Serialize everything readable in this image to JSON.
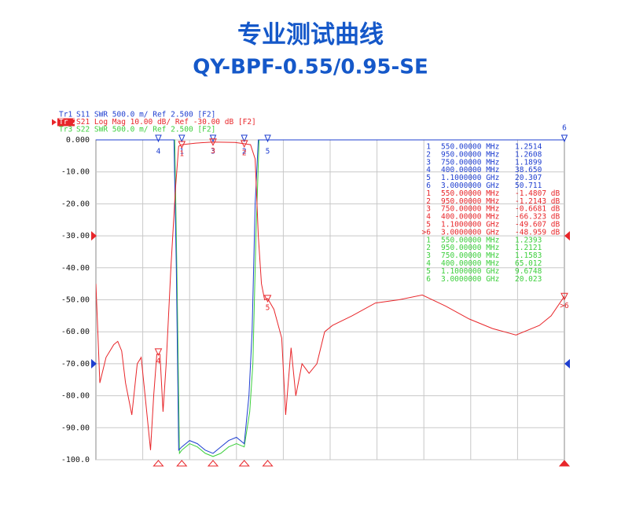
{
  "chart_data": {
    "type": "line",
    "title": "专业测试曲线",
    "subtitle": "QY-BPF-0.55/0.95-SE",
    "xlim": [
      0,
      3000
    ],
    "ylim": [
      -100,
      0
    ],
    "yticks": [
      {
        "value": 0,
        "label": "0.000"
      },
      {
        "value": -10,
        "label": "-10.00"
      },
      {
        "value": -20,
        "label": "-20.00"
      },
      {
        "value": -30,
        "label": "-30.00"
      },
      {
        "value": -40,
        "label": "-40.00"
      },
      {
        "value": -50,
        "label": "-50.00"
      },
      {
        "value": -60,
        "label": "-60.00"
      },
      {
        "value": -70,
        "label": "-70.00"
      },
      {
        "value": -80,
        "label": "-80.00"
      },
      {
        "value": -90,
        "label": "-90.00"
      },
      {
        "value": -100,
        "label": "-100.0"
      }
    ],
    "grid": true,
    "ref_markers": [
      {
        "value": -30,
        "color": "#e8262a"
      },
      {
        "value": -70,
        "color": "#1f3fd0"
      }
    ],
    "series": [
      {
        "name": "Tr1",
        "description": "S11  SWR 500.0 m/ Ref 2.500  [F2]",
        "color": "#1f3fd0",
        "marker_style": "top",
        "x": [
          0,
          500,
          515,
          530,
          550,
          600,
          650,
          700,
          750,
          800,
          850,
          900,
          950,
          980,
          1000,
          1020,
          1040,
          1060,
          3000
        ],
        "values": [
          0,
          0,
          -40,
          -97,
          -96,
          -94,
          -95,
          -97,
          -98,
          -96,
          -94,
          -93,
          -95,
          -80,
          -60,
          -20,
          0,
          0,
          0
        ]
      },
      {
        "name": "Tr 2",
        "description": "S21  Log Mag 10.00 dB/ Ref -30.00 dB  [F2]",
        "color": "#e8262a",
        "active": true,
        "marker_style": "trace",
        "x": [
          0,
          25,
          65,
          115,
          140,
          165,
          190,
          230,
          265,
          290,
          315,
          350,
          370,
          390,
          410,
          430,
          450,
          480,
          510,
          530,
          550,
          640,
          750,
          890,
          950,
          990,
          1020,
          1040,
          1060,
          1080,
          1100,
          1140,
          1190,
          1215,
          1250,
          1280,
          1320,
          1365,
          1415,
          1465,
          1515,
          1640,
          1790,
          1940,
          2090,
          2240,
          2390,
          2540,
          2690,
          2840,
          2915,
          3000
        ],
        "values": [
          -45,
          -76,
          -68,
          -64,
          -63,
          -66,
          -76,
          -86,
          -70,
          -68,
          -80,
          -97,
          -80,
          -67,
          -67,
          -85,
          -70,
          -40,
          -15,
          -2,
          -1.5,
          -1,
          -0.7,
          -0.8,
          -1.2,
          -1.5,
          -6,
          -30,
          -45,
          -50,
          -49.6,
          -53,
          -62,
          -86,
          -65,
          -80,
          -70,
          -73,
          -70,
          -60,
          -58,
          -55,
          -51,
          -50,
          -48.5,
          -52,
          -56,
          -59,
          -61,
          -58,
          -55,
          -48.9
        ]
      },
      {
        "name": "Tr3",
        "description": "S22  SWR 500.0 m/ Ref 2.500  [F2]",
        "color": "#3ccf3c",
        "marker_style": "none",
        "x": [
          0,
          505,
          520,
          535,
          550,
          600,
          650,
          700,
          750,
          800,
          850,
          900,
          950,
          985,
          1005,
          1025,
          1045,
          1065,
          3000
        ],
        "values": [
          0,
          0,
          -45,
          -98,
          -97,
          -95,
          -96,
          -98,
          -99,
          -98,
          -96,
          -95,
          -96,
          -85,
          -70,
          -30,
          0,
          0,
          0
        ]
      }
    ],
    "marker_table": [
      {
        "trace": 0,
        "rows": [
          {
            "marker": "1",
            "freq": {
              "value": 550,
              "label": "550.00000 MHz"
            },
            "reading": "1.2514"
          },
          {
            "marker": "2",
            "freq": {
              "value": 950,
              "label": "950.00000 MHz"
            },
            "reading": "1.2608"
          },
          {
            "marker": "3",
            "freq": {
              "value": 750,
              "label": "750.00000 MHz"
            },
            "reading": "1.1899"
          },
          {
            "marker": "4",
            "freq": {
              "value": 400,
              "label": "400.00000 MHz"
            },
            "reading": "38.650"
          },
          {
            "marker": "5",
            "freq": {
              "value": 1100,
              "label": "1.1000000 GHz"
            },
            "reading": "20.307"
          },
          {
            "marker": "6",
            "freq": {
              "value": 3000,
              "label": "3.0000000 GHz"
            },
            "reading": "50.711"
          }
        ]
      },
      {
        "trace": 1,
        "rows": [
          {
            "marker": "1",
            "freq": {
              "value": 550,
              "label": "550.00000 MHz"
            },
            "reading": {
              "value": -1.4807,
              "label": "-1.4807 dB"
            }
          },
          {
            "marker": "2",
            "freq": {
              "value": 950,
              "label": "950.00000 MHz"
            },
            "reading": {
              "value": -1.2143,
              "label": "-1.2143 dB"
            }
          },
          {
            "marker": "3",
            "freq": {
              "value": 750,
              "label": "750.00000 MHz"
            },
            "reading": {
              "value": -0.6681,
              "label": "-0.6681 dB"
            }
          },
          {
            "marker": "4",
            "freq": {
              "value": 400,
              "label": "400.00000 MHz"
            },
            "reading": {
              "value": -66.323,
              "label": "-66.323 dB"
            }
          },
          {
            "marker": "5",
            "freq": {
              "value": 1100,
              "label": "1.1000000 GHz"
            },
            "reading": {
              "value": -49.607,
              "label": "-49.607 dB"
            }
          },
          {
            "marker": ">6",
            "freq": {
              "value": 3000,
              "label": "3.0000000 GHz"
            },
            "reading": {
              "value": -48.959,
              "label": "-48.959 dB"
            }
          }
        ]
      },
      {
        "trace": 2,
        "rows": [
          {
            "marker": "1",
            "freq": {
              "value": 550,
              "label": "550.00000 MHz"
            },
            "reading": "1.2393"
          },
          {
            "marker": "2",
            "freq": {
              "value": 950,
              "label": "950.00000 MHz"
            },
            "reading": "1.2121"
          },
          {
            "marker": "3",
            "freq": {
              "value": 750,
              "label": "750.00000 MHz"
            },
            "reading": "1.1583"
          },
          {
            "marker": "4",
            "freq": {
              "value": 400,
              "label": "400.00000 MHz"
            },
            "reading": "65.012"
          },
          {
            "marker": "5",
            "freq": {
              "value": 1100,
              "label": "1.1000000 GHz"
            },
            "reading": "9.6748"
          },
          {
            "marker": "6",
            "freq": {
              "value": 3000,
              "label": "3.0000000 GHz"
            },
            "reading": "20.023"
          }
        ]
      }
    ]
  }
}
